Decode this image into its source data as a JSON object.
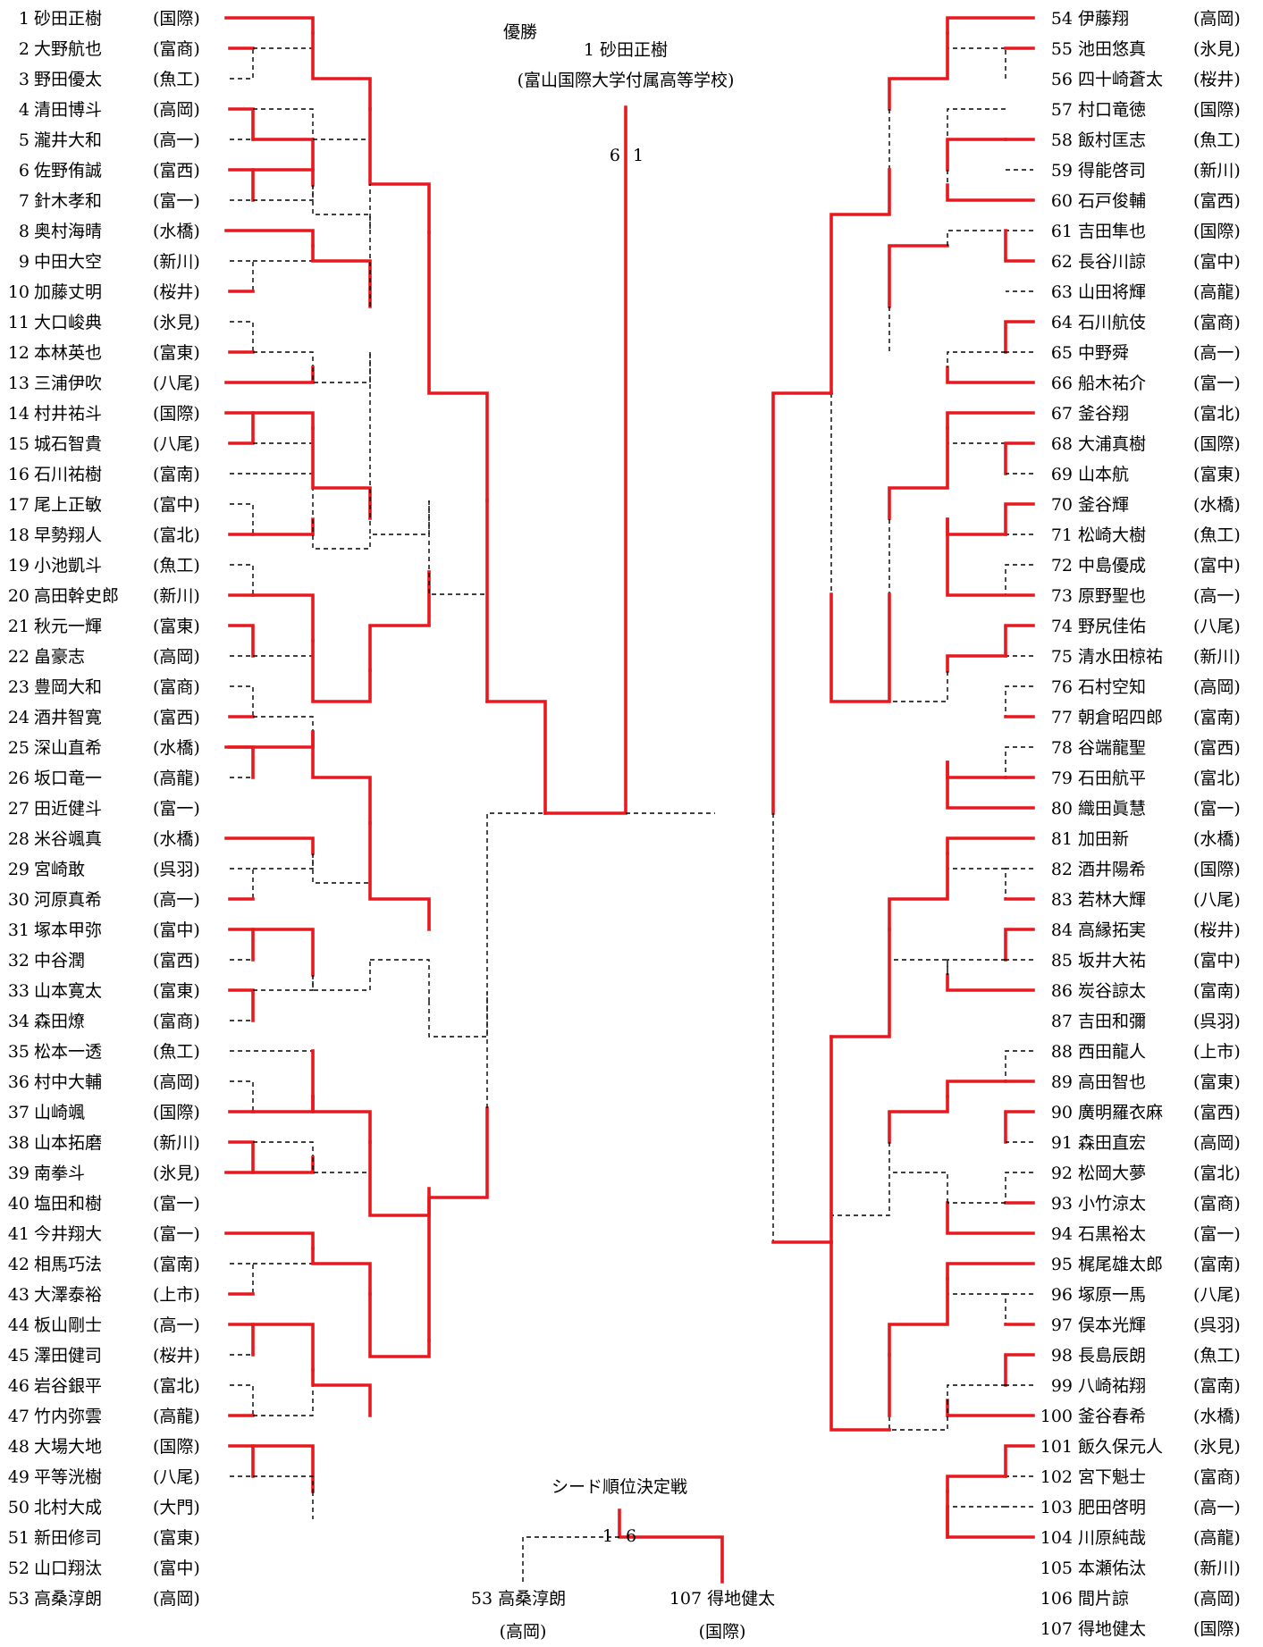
{
  "champion": {
    "heading": "優勝",
    "line": "1 砂田正樹",
    "school": "(富山国際大学付属高等学校)",
    "final_scores": [
      "6",
      "1"
    ]
  },
  "seed_match": {
    "title": "シード順位決定戦",
    "left": {
      "line": "53 高桑淳朗",
      "school": "(高岡)",
      "score": "1"
    },
    "right": {
      "line": "107 得地健太",
      "school": "(国際)",
      "score": "6"
    }
  },
  "left_players": [
    {
      "no": "1",
      "name": "砂田正樹",
      "school": "(国際)"
    },
    {
      "no": "2",
      "name": "大野航也",
      "school": "(富商)"
    },
    {
      "no": "3",
      "name": "野田優太",
      "school": "(魚工)"
    },
    {
      "no": "4",
      "name": "清田博斗",
      "school": "(高岡)"
    },
    {
      "no": "5",
      "name": "瀧井大和",
      "school": "(高一)"
    },
    {
      "no": "6",
      "name": "佐野侑誠",
      "school": "(富西)"
    },
    {
      "no": "7",
      "name": "針木孝和",
      "school": "(富一)"
    },
    {
      "no": "8",
      "name": "奥村海晴",
      "school": "(水橋)"
    },
    {
      "no": "9",
      "name": "中田大空",
      "school": "(新川)"
    },
    {
      "no": "10",
      "name": "加藤丈明",
      "school": "(桜井)"
    },
    {
      "no": "11",
      "name": "大口峻典",
      "school": "(氷見)"
    },
    {
      "no": "12",
      "name": "本林英也",
      "school": "(富東)"
    },
    {
      "no": "13",
      "name": "三浦伊吹",
      "school": "(八尾)"
    },
    {
      "no": "14",
      "name": "村井祐斗",
      "school": "(国際)"
    },
    {
      "no": "15",
      "name": "城石智貴",
      "school": "(八尾)"
    },
    {
      "no": "16",
      "name": "石川祐樹",
      "school": "(富南)"
    },
    {
      "no": "17",
      "name": "尾上正敏",
      "school": "(富中)"
    },
    {
      "no": "18",
      "name": "早勢翔人",
      "school": "(富北)"
    },
    {
      "no": "19",
      "name": "小池凱斗",
      "school": "(魚工)"
    },
    {
      "no": "20",
      "name": "高田幹史郎",
      "school": "(新川)"
    },
    {
      "no": "21",
      "name": "秋元一輝",
      "school": "(富東)"
    },
    {
      "no": "22",
      "name": "畠豪志",
      "school": "(高岡)"
    },
    {
      "no": "23",
      "name": "豊岡大和",
      "school": "(富商)"
    },
    {
      "no": "24",
      "name": "酒井智寛",
      "school": "(富西)"
    },
    {
      "no": "25",
      "name": "深山直希",
      "school": "(水橋)"
    },
    {
      "no": "26",
      "name": "坂口竜一",
      "school": "(高龍)"
    },
    {
      "no": "27",
      "name": "田近健斗",
      "school": "(富一)"
    },
    {
      "no": "28",
      "name": "米谷颯真",
      "school": "(水橋)"
    },
    {
      "no": "29",
      "name": "宮崎敢",
      "school": "(呉羽)"
    },
    {
      "no": "30",
      "name": "河原真希",
      "school": "(高一)"
    },
    {
      "no": "31",
      "name": "塚本甲弥",
      "school": "(富中)"
    },
    {
      "no": "32",
      "name": "中谷潤",
      "school": "(富西)"
    },
    {
      "no": "33",
      "name": "山本寛太",
      "school": "(富東)"
    },
    {
      "no": "34",
      "name": "森田燎",
      "school": "(富商)"
    },
    {
      "no": "35",
      "name": "松本一透",
      "school": "(魚工)"
    },
    {
      "no": "36",
      "name": "村中大輔",
      "school": "(高岡)"
    },
    {
      "no": "37",
      "name": "山崎颯",
      "school": "(国際)"
    },
    {
      "no": "38",
      "name": "山本拓磨",
      "school": "(新川)"
    },
    {
      "no": "39",
      "name": "南拳斗",
      "school": "(氷見)"
    },
    {
      "no": "40",
      "name": "塩田和樹",
      "school": "(富一)"
    },
    {
      "no": "41",
      "name": "今井翔大",
      "school": "(富一)"
    },
    {
      "no": "42",
      "name": "相馬巧法",
      "school": "(富南)"
    },
    {
      "no": "43",
      "name": "大澤泰裕",
      "school": "(上市)"
    },
    {
      "no": "44",
      "name": "板山剛士",
      "school": "(高一)"
    },
    {
      "no": "45",
      "name": "澤田健司",
      "school": "(桜井)"
    },
    {
      "no": "46",
      "name": "岩谷銀平",
      "school": "(富北)"
    },
    {
      "no": "47",
      "name": "竹内弥雲",
      "school": "(高龍)"
    },
    {
      "no": "48",
      "name": "大場大地",
      "school": "(国際)"
    },
    {
      "no": "49",
      "name": "平等洸樹",
      "school": "(八尾)"
    },
    {
      "no": "50",
      "name": "北村大成",
      "school": "(大門)"
    },
    {
      "no": "51",
      "name": "新田修司",
      "school": "(富東)"
    },
    {
      "no": "52",
      "name": "山口翔汰",
      "school": "(富中)"
    },
    {
      "no": "53",
      "name": "高桑淳朗",
      "school": "(高岡)"
    }
  ],
  "right_players": [
    {
      "no": "54",
      "name": "伊藤翔",
      "school": "(高岡)"
    },
    {
      "no": "55",
      "name": "池田悠真",
      "school": "(氷見)"
    },
    {
      "no": "56",
      "name": "四十崎蒼太",
      "school": "(桜井)"
    },
    {
      "no": "57",
      "name": "村口竜徳",
      "school": "(国際)"
    },
    {
      "no": "58",
      "name": "飯村匡志",
      "school": "(魚工)"
    },
    {
      "no": "59",
      "name": "得能啓司",
      "school": "(新川)"
    },
    {
      "no": "60",
      "name": "石戸俊輔",
      "school": "(富西)"
    },
    {
      "no": "61",
      "name": "吉田隼也",
      "school": "(国際)"
    },
    {
      "no": "62",
      "name": "長谷川諒",
      "school": "(富中)"
    },
    {
      "no": "63",
      "name": "山田将輝",
      "school": "(高龍)"
    },
    {
      "no": "64",
      "name": "石川航伎",
      "school": "(富商)"
    },
    {
      "no": "65",
      "name": "中野舜",
      "school": "(高一)"
    },
    {
      "no": "66",
      "name": "船木祐介",
      "school": "(富一)"
    },
    {
      "no": "67",
      "name": "釜谷翔",
      "school": "(富北)"
    },
    {
      "no": "68",
      "name": "大浦真樹",
      "school": "(国際)"
    },
    {
      "no": "69",
      "name": "山本航",
      "school": "(富東)"
    },
    {
      "no": "70",
      "name": "釜谷輝",
      "school": "(水橋)"
    },
    {
      "no": "71",
      "name": "松崎大樹",
      "school": "(魚工)"
    },
    {
      "no": "72",
      "name": "中島優成",
      "school": "(富中)"
    },
    {
      "no": "73",
      "name": "原野聖也",
      "school": "(高一)"
    },
    {
      "no": "74",
      "name": "野尻佳佑",
      "school": "(八尾)"
    },
    {
      "no": "75",
      "name": "清水田椋祐",
      "school": "(新川)"
    },
    {
      "no": "76",
      "name": "石村空知",
      "school": "(高岡)"
    },
    {
      "no": "77",
      "name": "朝倉昭四郎",
      "school": "(富南)"
    },
    {
      "no": "78",
      "name": "谷端龍聖",
      "school": "(富西)"
    },
    {
      "no": "79",
      "name": "石田航平",
      "school": "(富北)"
    },
    {
      "no": "80",
      "name": "織田眞慧",
      "school": "(富一)"
    },
    {
      "no": "81",
      "name": "加田新",
      "school": "(水橋)"
    },
    {
      "no": "82",
      "name": "酒井陽希",
      "school": "(国際)"
    },
    {
      "no": "83",
      "name": "若林大輝",
      "school": "(八尾)"
    },
    {
      "no": "84",
      "name": "高縁拓実",
      "school": "(桜井)"
    },
    {
      "no": "85",
      "name": "坂井大祐",
      "school": "(富中)"
    },
    {
      "no": "86",
      "name": "炭谷諒太",
      "school": "(富南)"
    },
    {
      "no": "87",
      "name": "吉田和彌",
      "school": "(呉羽)"
    },
    {
      "no": "88",
      "name": "西田龍人",
      "school": "(上市)"
    },
    {
      "no": "89",
      "name": "高田智也",
      "school": "(富東)"
    },
    {
      "no": "90",
      "name": "廣明羅衣麻",
      "school": "(富西)"
    },
    {
      "no": "91",
      "name": "森田直宏",
      "school": "(高岡)"
    },
    {
      "no": "92",
      "name": "松岡大夢",
      "school": "(富北)"
    },
    {
      "no": "93",
      "name": "小竹涼太",
      "school": "(富商)"
    },
    {
      "no": "94",
      "name": "石黒裕太",
      "school": "(富一)"
    },
    {
      "no": "95",
      "name": "梶尾雄太郎",
      "school": "(富南)"
    },
    {
      "no": "96",
      "name": "塚原一馬",
      "school": "(八尾)"
    },
    {
      "no": "97",
      "name": "俣本光輝",
      "school": "(呉羽)"
    },
    {
      "no": "98",
      "name": "長島辰朗",
      "school": "(魚工)"
    },
    {
      "no": "99",
      "name": "八崎祐翔",
      "school": "(富南)"
    },
    {
      "no": "100",
      "name": "釜谷春希",
      "school": "(水橋)"
    },
    {
      "no": "101",
      "name": "飯久保元人",
      "school": "(氷見)"
    },
    {
      "no": "102",
      "name": "宮下魁士",
      "school": "(富商)"
    },
    {
      "no": "103",
      "name": "肥田啓明",
      "school": "(高一)"
    },
    {
      "no": "104",
      "name": "川原純哉",
      "school": "(高龍)"
    },
    {
      "no": "105",
      "name": "本瀬佑汰",
      "school": "(新川)"
    },
    {
      "no": "106",
      "name": "間片諒",
      "school": "(高岡)"
    },
    {
      "no": "107",
      "name": "得地健太",
      "school": "(国際)"
    }
  ],
  "colors": {
    "winner_line": "#e8191e",
    "loser_line": "#000000"
  }
}
